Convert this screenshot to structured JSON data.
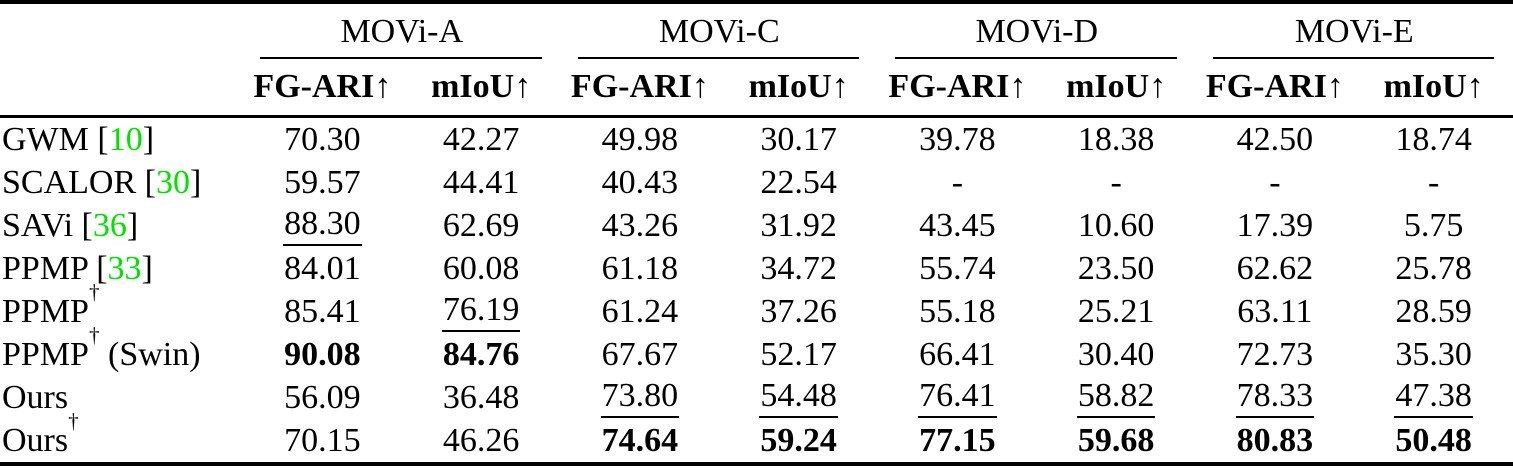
{
  "colors": {
    "citation_green": "#00e000",
    "text": "#000000",
    "background": "#ffffff",
    "rule": "#000000"
  },
  "table": {
    "kind": "benchmark-results",
    "dagger_symbol": "†",
    "cite_brackets": {
      "open": "[",
      "close": "]"
    },
    "groups": [
      {
        "label": "MOVi-A"
      },
      {
        "label": "MOVi-C"
      },
      {
        "label": "MOVi-D"
      },
      {
        "label": "MOVi-E"
      }
    ],
    "metric_headers": [
      "FG-ARI↑",
      "mIoU↑"
    ],
    "rows": [
      {
        "method": {
          "name": "GWM",
          "dagger": false,
          "suffix": "",
          "cite": "10"
        },
        "cells": [
          {
            "text": "70.30",
            "style": "plain"
          },
          {
            "text": "42.27",
            "style": "plain"
          },
          {
            "text": "49.98",
            "style": "plain"
          },
          {
            "text": "30.17",
            "style": "plain"
          },
          {
            "text": "39.78",
            "style": "plain"
          },
          {
            "text": "18.38",
            "style": "plain"
          },
          {
            "text": "42.50",
            "style": "plain"
          },
          {
            "text": "18.74",
            "style": "plain"
          }
        ]
      },
      {
        "method": {
          "name": "SCALOR",
          "dagger": false,
          "suffix": "",
          "cite": "30"
        },
        "cells": [
          {
            "text": "59.57",
            "style": "plain"
          },
          {
            "text": "44.41",
            "style": "plain"
          },
          {
            "text": "40.43",
            "style": "plain"
          },
          {
            "text": "22.54",
            "style": "plain"
          },
          {
            "text": "-",
            "style": "plain"
          },
          {
            "text": "-",
            "style": "plain"
          },
          {
            "text": "-",
            "style": "plain"
          },
          {
            "text": "-",
            "style": "plain"
          }
        ]
      },
      {
        "method": {
          "name": "SAVi",
          "dagger": false,
          "suffix": "",
          "cite": "36"
        },
        "cells": [
          {
            "text": "88.30",
            "style": "underline"
          },
          {
            "text": "62.69",
            "style": "plain"
          },
          {
            "text": "43.26",
            "style": "plain"
          },
          {
            "text": "31.92",
            "style": "plain"
          },
          {
            "text": "43.45",
            "style": "plain"
          },
          {
            "text": "10.60",
            "style": "plain"
          },
          {
            "text": "17.39",
            "style": "plain"
          },
          {
            "text": "5.75",
            "style": "plain"
          }
        ]
      },
      {
        "method": {
          "name": "PPMP",
          "dagger": false,
          "suffix": "",
          "cite": "33"
        },
        "cells": [
          {
            "text": "84.01",
            "style": "plain"
          },
          {
            "text": "60.08",
            "style": "plain"
          },
          {
            "text": "61.18",
            "style": "plain"
          },
          {
            "text": "34.72",
            "style": "plain"
          },
          {
            "text": "55.74",
            "style": "plain"
          },
          {
            "text": "23.50",
            "style": "plain"
          },
          {
            "text": "62.62",
            "style": "plain"
          },
          {
            "text": "25.78",
            "style": "plain"
          }
        ]
      },
      {
        "method": {
          "name": "PPMP",
          "dagger": true,
          "suffix": "",
          "cite": ""
        },
        "cells": [
          {
            "text": "85.41",
            "style": "plain"
          },
          {
            "text": "76.19",
            "style": "underline"
          },
          {
            "text": "61.24",
            "style": "plain"
          },
          {
            "text": "37.26",
            "style": "plain"
          },
          {
            "text": "55.18",
            "style": "plain"
          },
          {
            "text": "25.21",
            "style": "plain"
          },
          {
            "text": "63.11",
            "style": "plain"
          },
          {
            "text": "28.59",
            "style": "plain"
          }
        ]
      },
      {
        "method": {
          "name": "PPMP",
          "dagger": true,
          "suffix": " (Swin)",
          "cite": ""
        },
        "cells": [
          {
            "text": "90.08",
            "style": "bold"
          },
          {
            "text": "84.76",
            "style": "bold"
          },
          {
            "text": "67.67",
            "style": "plain"
          },
          {
            "text": "52.17",
            "style": "plain"
          },
          {
            "text": "66.41",
            "style": "plain"
          },
          {
            "text": "30.40",
            "style": "plain"
          },
          {
            "text": "72.73",
            "style": "plain"
          },
          {
            "text": "35.30",
            "style": "plain"
          }
        ]
      },
      {
        "method": {
          "name": "Ours",
          "dagger": false,
          "suffix": "",
          "cite": ""
        },
        "cells": [
          {
            "text": "56.09",
            "style": "plain"
          },
          {
            "text": "36.48",
            "style": "plain"
          },
          {
            "text": "73.80",
            "style": "underline"
          },
          {
            "text": "54.48",
            "style": "underline"
          },
          {
            "text": "76.41",
            "style": "underline"
          },
          {
            "text": "58.82",
            "style": "underline"
          },
          {
            "text": "78.33",
            "style": "underline"
          },
          {
            "text": "47.38",
            "style": "underline"
          }
        ]
      },
      {
        "method": {
          "name": "Ours",
          "dagger": true,
          "suffix": "",
          "cite": ""
        },
        "cells": [
          {
            "text": "70.15",
            "style": "plain"
          },
          {
            "text": "46.26",
            "style": "plain"
          },
          {
            "text": "74.64",
            "style": "bold"
          },
          {
            "text": "59.24",
            "style": "bold"
          },
          {
            "text": "77.15",
            "style": "bold"
          },
          {
            "text": "59.68",
            "style": "bold"
          },
          {
            "text": "80.83",
            "style": "bold"
          },
          {
            "text": "50.48",
            "style": "bold"
          }
        ]
      }
    ]
  }
}
